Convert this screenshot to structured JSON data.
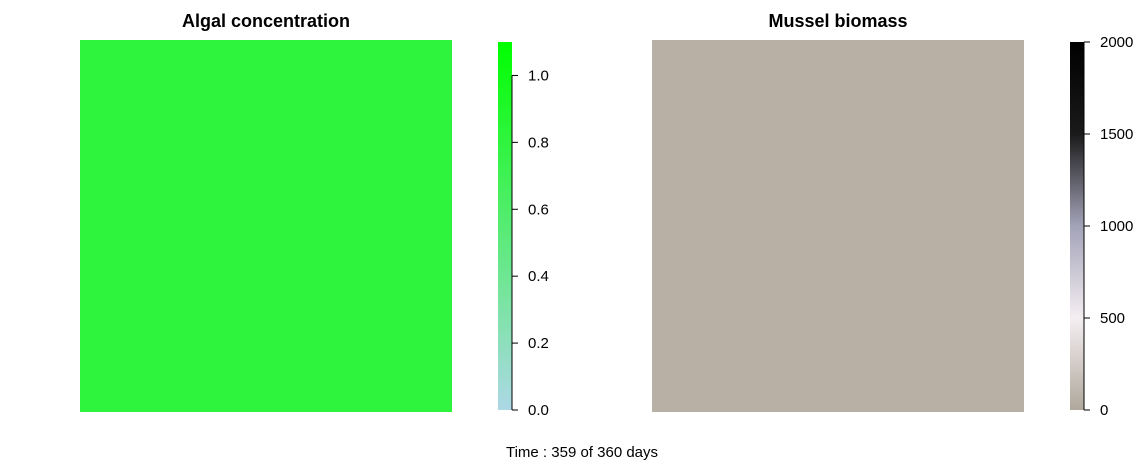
{
  "chart_data": [
    {
      "type": "heatmap",
      "title": "Algal concentration",
      "value": 1.05,
      "fill_color": "#2ef43e",
      "colorbar": {
        "min": 0,
        "max": 1.1,
        "ticks": [
          0,
          0.2,
          0.4,
          0.6,
          0.8,
          1.0
        ],
        "tick_labels": [
          "0.0",
          "0.2",
          "0.4",
          "0.6",
          "0.8",
          "1.0"
        ],
        "colors": [
          "#add8e6",
          "#00ff00"
        ]
      }
    },
    {
      "type": "heatmap",
      "title": "Mussel biomass",
      "value": 120,
      "fill_color": "#b8b0a5",
      "colorbar": {
        "min": 0,
        "max": 2000,
        "ticks": [
          0,
          500,
          1000,
          1500,
          2000
        ],
        "tick_labels": [
          "0",
          "500",
          "1000",
          "1500",
          "2000"
        ],
        "colors": [
          "#b0a89c",
          "#f4eef2",
          "#a3a3b8",
          "#1a1a1a",
          "#000000"
        ]
      }
    }
  ],
  "caption": "Time :  359 of 360 days"
}
